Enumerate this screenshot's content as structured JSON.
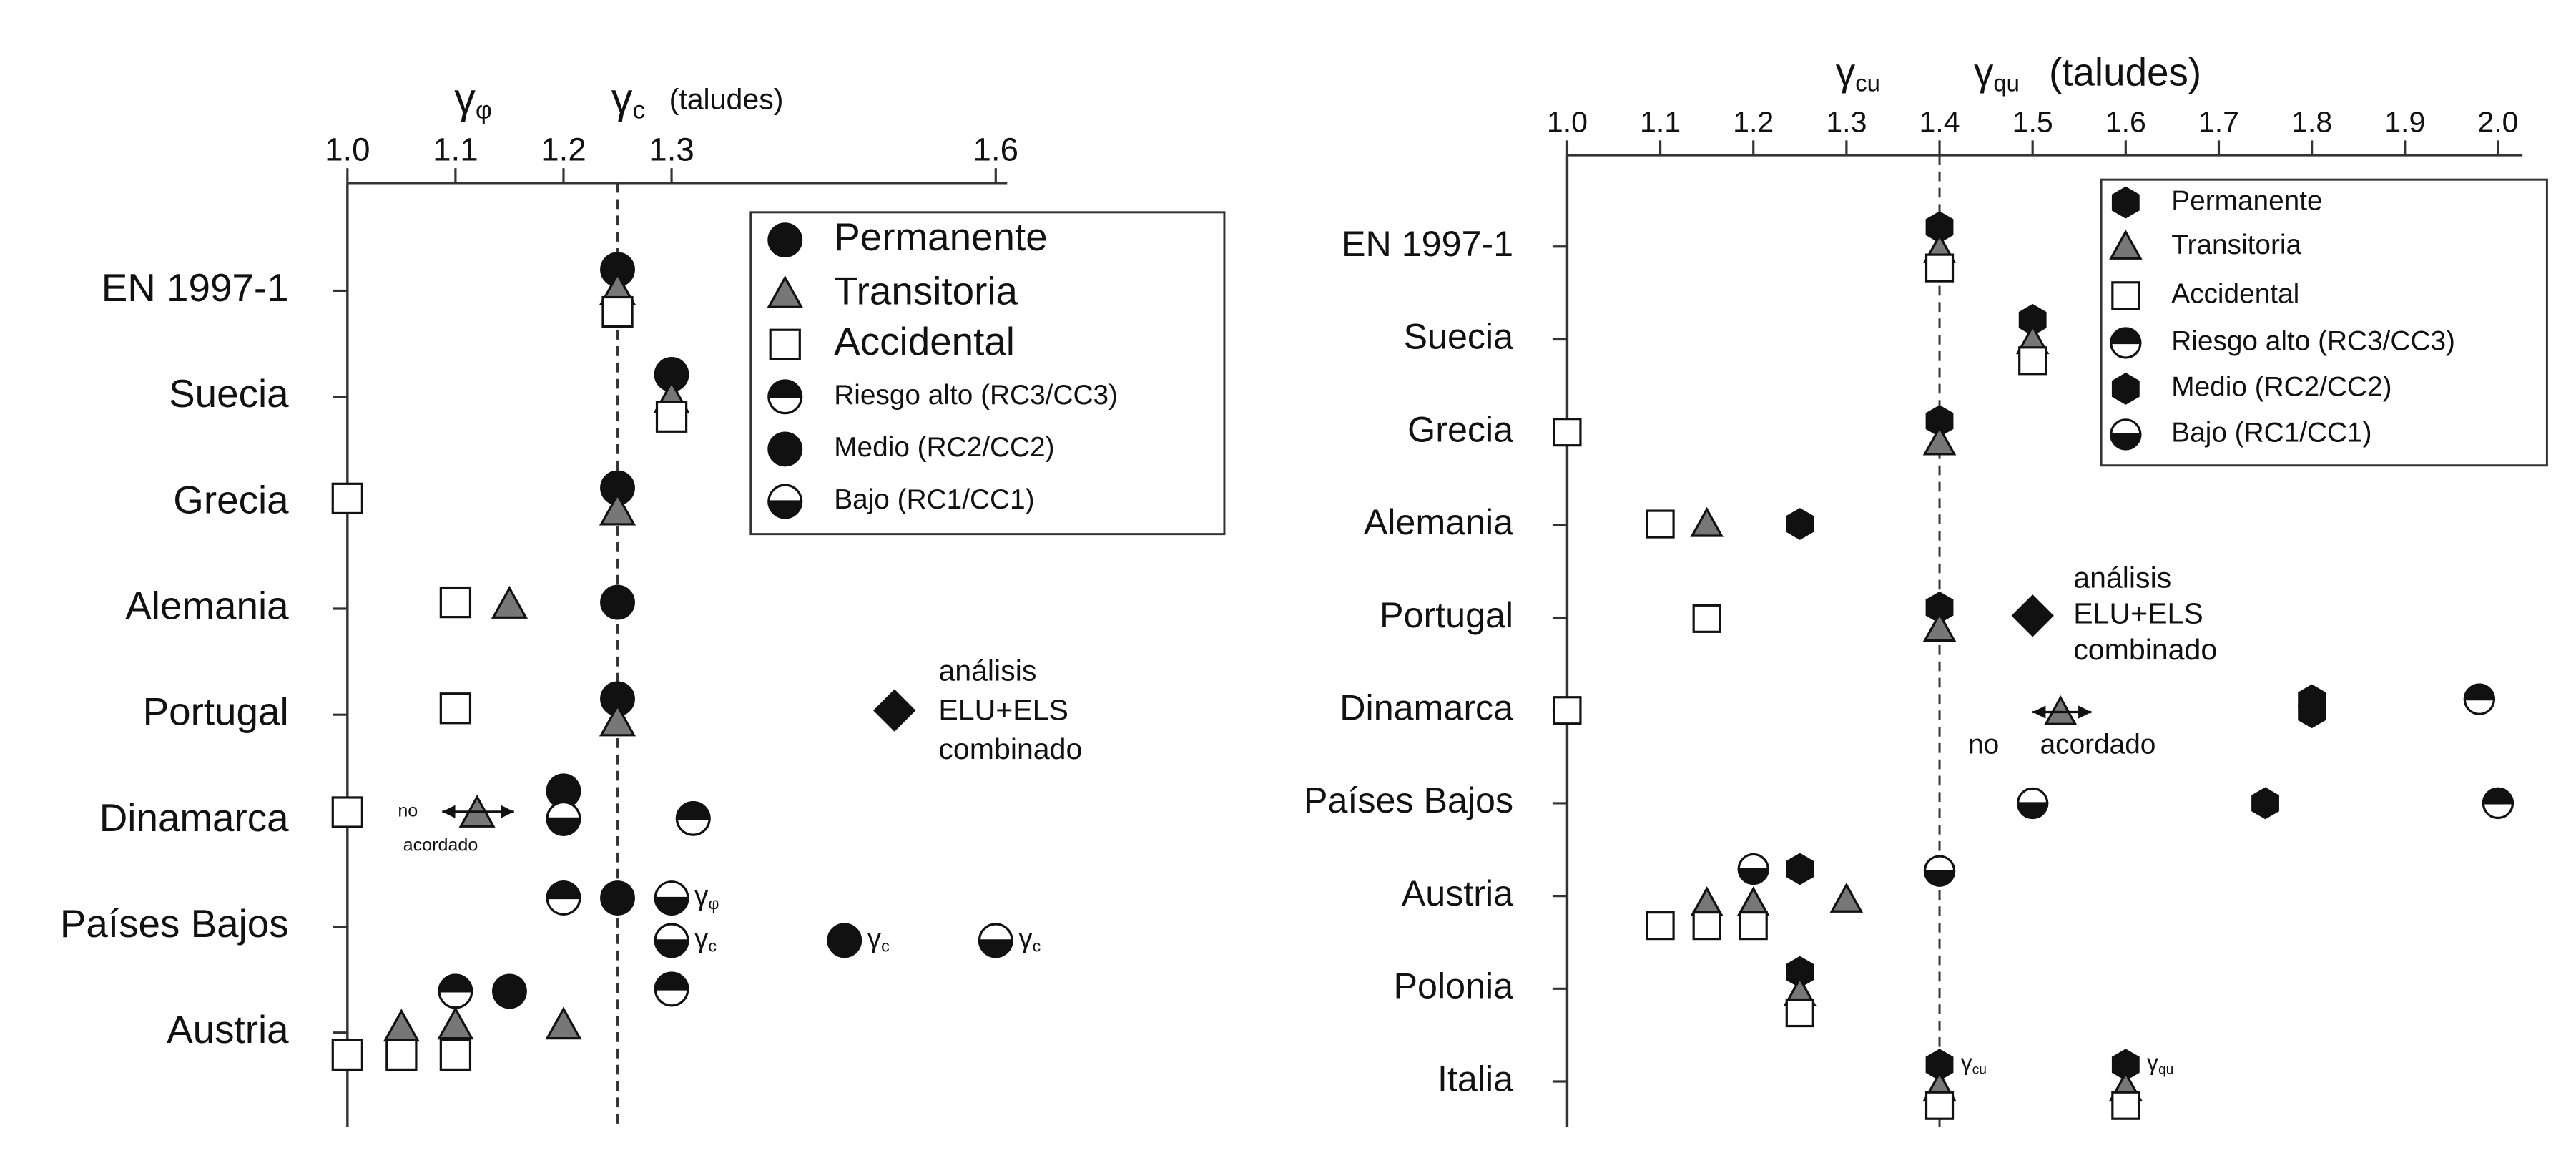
{
  "chart_data": [
    {
      "type": "scatter",
      "axis_title": {
        "symbols": [
          "γφ",
          "γc"
        ],
        "suffix": "(taludes)"
      },
      "xlim": [
        1.0,
        1.6
      ],
      "xticks": [
        {
          "value": 1.0,
          "label": "1.0"
        },
        1.1,
        1.2,
        1.3,
        1.6
      ],
      "reference_line": 1.25,
      "categories": [
        "EN 1997-1",
        "Suecia",
        "Grecia",
        "Alemania",
        "Portugal",
        "Dinamarca",
        "Países Bajos",
        "Austria"
      ],
      "series": [
        {
          "name": "Permanente",
          "marker": "circle",
          "color": "#111111",
          "x": [
            1.25,
            1.3,
            1.25,
            1.25,
            1.25,
            1.25
          ],
          "y": [
            -0.2,
            0.79,
            1.86,
            2.94,
            3.85,
            5.73
          ]
        },
        {
          "name": "Transitoria",
          "marker": "triangle",
          "color": "#777777",
          "x": [
            1.25,
            1.3,
            1.25,
            1.15,
            1.25,
            1.12,
            1.05,
            1.1,
            1.2
          ],
          "y": [
            0.0,
            1.02,
            2.08,
            2.96,
            4.07,
            4.93,
            6.95,
            6.93,
            6.93
          ]
        },
        {
          "name": "Accidental",
          "marker": "square",
          "color": "#ffffff",
          "x": [
            1.25,
            1.3,
            1.0,
            1.1,
            1.1,
            1.0,
            1.0,
            1.05,
            1.1
          ],
          "y": [
            0.2,
            1.19,
            1.96,
            2.94,
            3.94,
            4.92,
            7.21,
            7.21,
            7.21
          ]
        },
        {
          "name": "Riesgo alto (RC3/CC3)",
          "marker": "half-top",
          "color": "#111111",
          "x": [
            1.32,
            1.2,
            1.1,
            1.3
          ],
          "y": [
            4.98,
            5.73,
            6.61,
            6.59
          ]
        },
        {
          "name": "Medio (RC2/CC2)",
          "marker": "circle",
          "color": "#111111",
          "x": [
            1.2,
            1.46,
            1.15
          ],
          "y": [
            4.72,
            6.13,
            6.61
          ],
          "point_labels": [
            null,
            "γc",
            null
          ]
        },
        {
          "name": "Bajo (RC1/CC1)",
          "marker": "half-bottom",
          "color": "#111111",
          "x": [
            1.2,
            1.3,
            1.3,
            1.6
          ],
          "y": [
            4.98,
            5.73,
            6.13,
            6.13
          ],
          "point_labels": [
            null,
            "γφ",
            "γc",
            "γc"
          ]
        }
      ],
      "note": [
        "análisis",
        "ELU+ELS",
        "combinado"
      ],
      "not_agreed": [
        "no",
        "acordado"
      ]
    },
    {
      "type": "scatter",
      "axis_title": {
        "symbols": [
          "γcu",
          "γqu"
        ],
        "suffix": "(taludes)"
      },
      "xlim": [
        1.0,
        2.0
      ],
      "xticks": [
        {
          "value": 1.0,
          "label": "1.0"
        },
        1.1,
        1.2,
        1.3,
        1.4,
        1.5,
        1.6,
        1.7,
        1.8,
        1.9,
        {
          "value": 2.0,
          "label": "2.0"
        }
      ],
      "reference_line": 1.4,
      "categories": [
        "EN 1997-1",
        "Suecia",
        "Grecia",
        "Alemania",
        "Portugal",
        "Dinamarca",
        "Países Bajos",
        "Austria",
        "Polonia",
        "Italia"
      ],
      "series": [
        {
          "name": "Permanente",
          "marker": "hexagon",
          "color": "#111111",
          "x": [
            1.4,
            1.5,
            1.4,
            1.25,
            1.4,
            1.8,
            1.75,
            1.25,
            1.25,
            1.4,
            1.6
          ],
          "y": [
            -0.21,
            0.79,
            1.88,
            2.99,
            3.89,
            4.89,
            6.0,
            6.71,
            7.82,
            8.82,
            8.82
          ],
          "point_labels": [
            null,
            null,
            null,
            null,
            null,
            null,
            null,
            null,
            null,
            "γcu",
            "γqu"
          ]
        },
        {
          "name": "Transitoria",
          "marker": "triangle",
          "color": "#777777",
          "x": [
            1.4,
            1.5,
            1.4,
            1.15,
            1.4,
            1.53,
            1.15,
            1.2,
            1.3,
            1.25,
            1.4,
            1.6
          ],
          "y": [
            0.04,
            1.02,
            2.11,
            2.99,
            4.12,
            5.02,
            7.08,
            7.08,
            7.04,
            8.05,
            9.07,
            9.07
          ]
        },
        {
          "name": "Accidental",
          "marker": "square",
          "color": "#ffffff",
          "x": [
            1.4,
            1.5,
            1.0,
            1.1,
            1.15,
            1.0,
            1.1,
            1.15,
            1.2,
            1.25,
            1.4,
            1.6
          ],
          "y": [
            0.23,
            1.23,
            2.0,
            2.99,
            4.01,
            5.0,
            7.32,
            7.32,
            7.32,
            8.26,
            9.26,
            9.26
          ]
        },
        {
          "name": "Riesgo alto (RC3/CC3)",
          "marker": "half-top",
          "color": "#111111",
          "x": [
            1.98,
            2.0
          ],
          "y": [
            4.88,
            6.0
          ]
        },
        {
          "name": "Medio (RC2/CC2)",
          "marker": "hexagon",
          "color": "#111111",
          "x": [
            1.8
          ],
          "y": [
            5.02
          ]
        },
        {
          "name": "Bajo (RC1/CC1)",
          "marker": "half-bottom",
          "color": "#111111",
          "x": [
            1.5,
            1.2,
            1.4
          ],
          "y": [
            6.0,
            6.71,
            6.73
          ]
        }
      ],
      "note": [
        "análisis",
        "ELU+ELS",
        "combinado"
      ],
      "not_agreed": [
        "no",
        "acordado"
      ]
    }
  ]
}
